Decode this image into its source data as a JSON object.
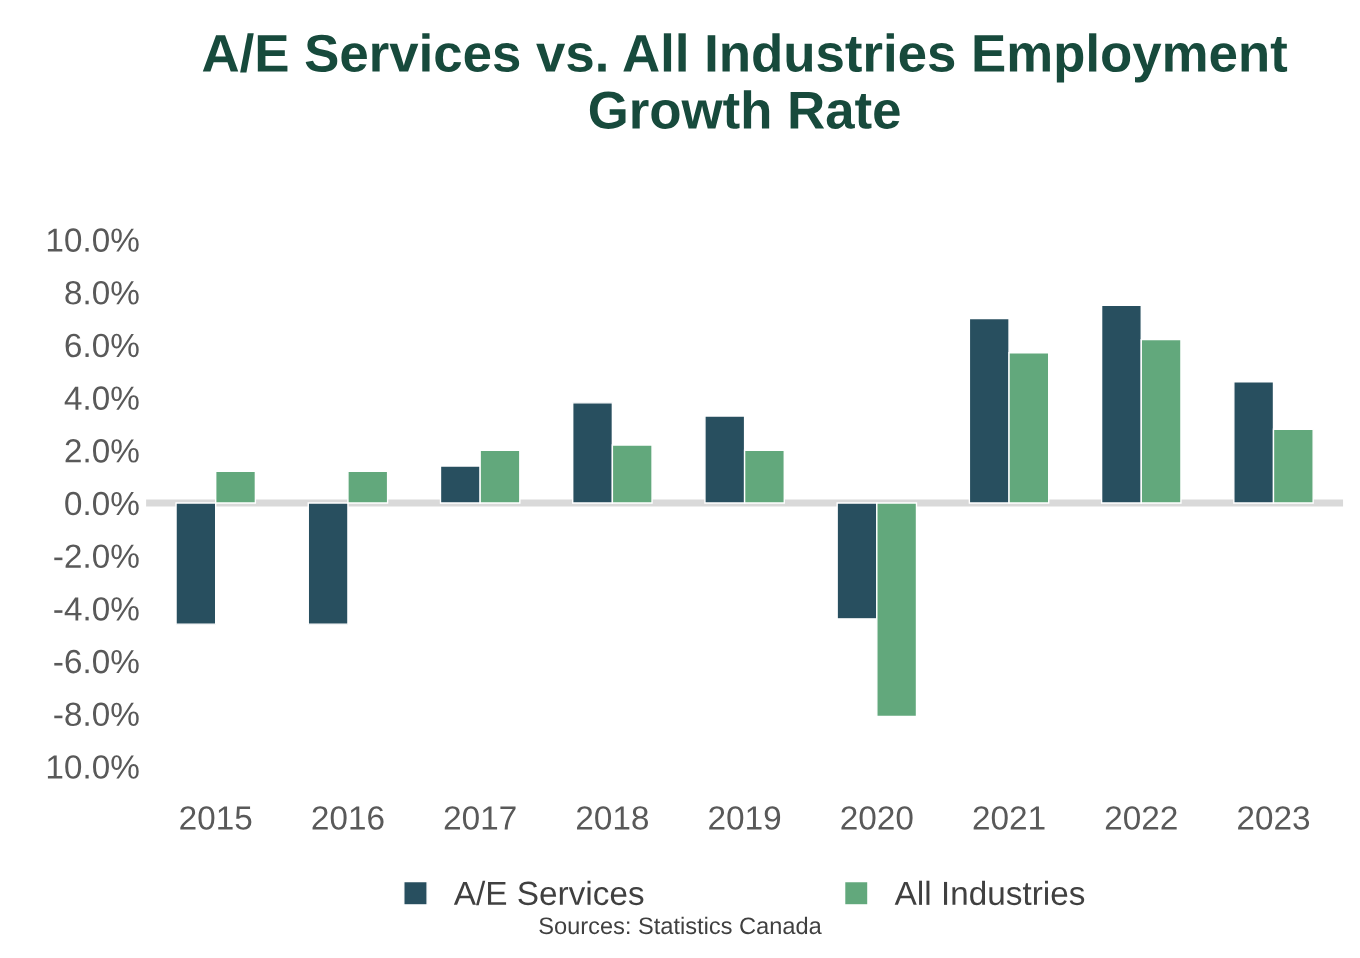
{
  "chart_data": {
    "type": "bar",
    "title": "A/E Services vs. All Industries Employment\nGrowth Rate",
    "categories": [
      "2015",
      "2016",
      "2017",
      "2018",
      "2019",
      "2020",
      "2021",
      "2022",
      "2023"
    ],
    "series": [
      {
        "name": "A/E Services",
        "color": "#284f5f",
        "values": [
          -4.6,
          -4.6,
          1.4,
          3.8,
          3.3,
          -4.4,
          7.0,
          7.5,
          4.6
        ]
      },
      {
        "name": "All Industries",
        "color": "#62a87c",
        "values": [
          1.2,
          1.2,
          2.0,
          2.2,
          2.0,
          -8.1,
          5.7,
          6.2,
          2.8
        ]
      }
    ],
    "ylim": [
      -10,
      10
    ],
    "yticks": [
      {
        "value": 10,
        "label": "10.0%"
      },
      {
        "value": 8,
        "label": "8.0%"
      },
      {
        "value": 6,
        "label": "6.0%"
      },
      {
        "value": 4,
        "label": "4.0%"
      },
      {
        "value": 2,
        "label": "2.0%"
      },
      {
        "value": 0,
        "label": "0.0%"
      },
      {
        "value": -2,
        "label": "-2.0%"
      },
      {
        "value": -4,
        "label": "-4.0%"
      },
      {
        "value": -6,
        "label": "-6.0%"
      },
      {
        "value": -8,
        "label": "-8.0%"
      },
      {
        "value": -10,
        "label": "10.0%"
      }
    ],
    "legend": "bottom",
    "annotations": [
      "Sources: Statistics Canada"
    ]
  }
}
